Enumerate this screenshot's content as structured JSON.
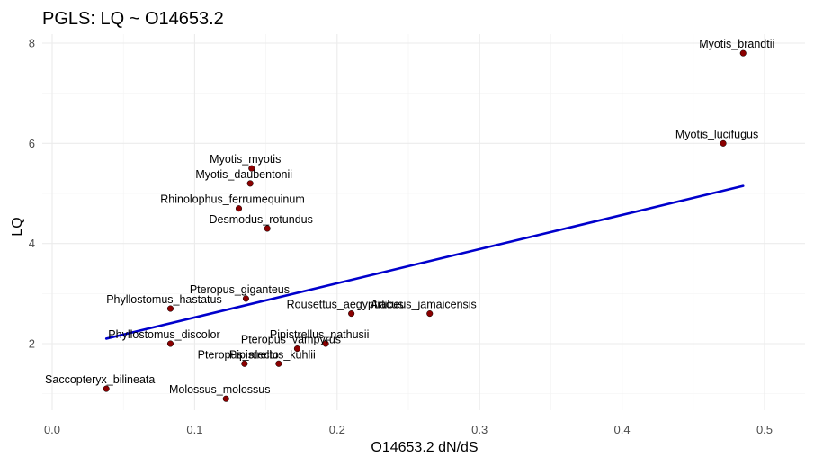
{
  "chart_data": {
    "type": "scatter",
    "title": "PGLS: LQ ~ O14653.2",
    "xlabel": "O14653.2 dN/dS",
    "ylabel": "LQ",
    "xlim": [
      -0.005,
      0.525
    ],
    "ylim": [
      0.9,
      8.2
    ],
    "xticks": [
      0.0,
      0.1,
      0.2,
      0.3,
      0.4,
      0.5
    ],
    "xtick_labels": [
      "0.0",
      "0.1",
      "0.2",
      "0.3",
      "0.4",
      "0.5"
    ],
    "yticks": [
      2,
      4,
      6,
      8
    ],
    "ytick_labels": [
      "2",
      "4",
      "6",
      "8"
    ],
    "grid": true,
    "point_color": "#8b0000",
    "line_color": "#0000cc",
    "points": [
      {
        "label": "Myotis_brandtii",
        "x": 0.485,
        "y": 7.8
      },
      {
        "label": "Myotis_lucifugus",
        "x": 0.471,
        "y": 6.0
      },
      {
        "label": "Myotis_myotis",
        "x": 0.14,
        "y": 5.5
      },
      {
        "label": "Myotis_daubentonii",
        "x": 0.139,
        "y": 5.2
      },
      {
        "label": "Rhinolophus_ferrumequinum",
        "x": 0.131,
        "y": 4.7
      },
      {
        "label": "Desmodus_rotundus",
        "x": 0.151,
        "y": 4.3
      },
      {
        "label": "Pteropus_giganteus",
        "x": 0.136,
        "y": 2.9
      },
      {
        "label": "Phyllostomus_hastatus",
        "x": 0.083,
        "y": 2.7
      },
      {
        "label": "Rousettus_aegyptiacus",
        "x": 0.21,
        "y": 2.6
      },
      {
        "label": "Artibeus_jamaicensis",
        "x": 0.265,
        "y": 2.6
      },
      {
        "label": "Phyllostomus_discolor",
        "x": 0.083,
        "y": 2.0
      },
      {
        "label": "Pipistrellus_nathusii",
        "x": 0.192,
        "y": 2.0
      },
      {
        "label": "Pteropus_vampyrus",
        "x": 0.172,
        "y": 1.9
      },
      {
        "label": "Pteropus_alecto",
        "x": 0.135,
        "y": 1.6
      },
      {
        "label": "Pipistrellus_kuhlii",
        "x": 0.159,
        "y": 1.6
      },
      {
        "label": "Saccopteryx_bilineata",
        "x": 0.038,
        "y": 1.1
      },
      {
        "label": "Molossus_molossus",
        "x": 0.122,
        "y": 0.9
      }
    ],
    "fit_line": {
      "x": [
        0.038,
        0.485
      ],
      "y": [
        2.1,
        5.15
      ]
    }
  }
}
